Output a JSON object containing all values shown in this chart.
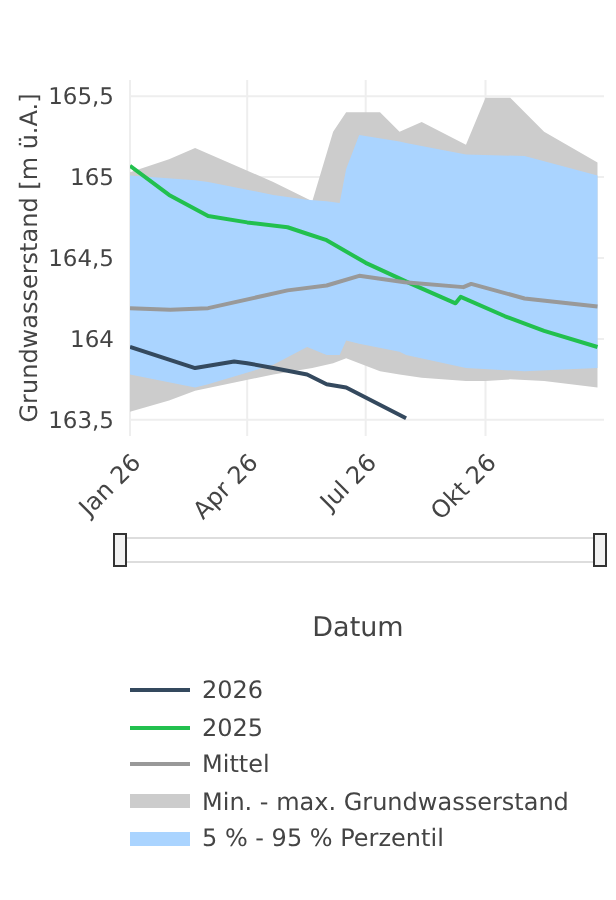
{
  "chart_data": {
    "type": "line",
    "xlabel": "Datum",
    "ylabel": "Grundwasserstand [m ü.A.]",
    "xlim": [
      "2026-01-01",
      "2026-12-31"
    ],
    "xticks": [
      {
        "value": "2026-01-01",
        "label": "Jan 26"
      },
      {
        "value": "2026-04-01",
        "label": "Apr 26"
      },
      {
        "value": "2026-07-01",
        "label": "Jul 26"
      },
      {
        "value": "2026-10-01",
        "label": "Okt 26"
      }
    ],
    "ylim": [
      163.4,
      165.6
    ],
    "yticks": [
      {
        "value": 163.5,
        "label": "163,5"
      },
      164,
      {
        "value": 164.5,
        "label": "164,5"
      },
      165,
      {
        "value": 165.5,
        "label": "165,5"
      }
    ],
    "grid": true,
    "legend": "bottom",
    "marker": "none",
    "series": [
      {
        "name": "2026",
        "color": "#34495e",
        "x": [
          "2026-01-01",
          "2026-02-20",
          "2026-03-22",
          "2026-04-01",
          "2026-04-21",
          "2026-05-17",
          "2026-06-01",
          "2026-06-16",
          "2026-08-01"
        ],
        "values": [
          163.95,
          163.82,
          163.86,
          163.85,
          163.82,
          163.78,
          163.72,
          163.7,
          163.51
        ]
      },
      {
        "name": "2025",
        "color": "#22c04e",
        "x": [
          "2026-01-01",
          "2026-01-31",
          "2026-03-02",
          "2026-04-01",
          "2026-05-02",
          "2026-05-17",
          "2026-06-01",
          "2026-07-01",
          "2026-08-05",
          "2026-09-08",
          "2026-09-12",
          "2026-10-16",
          "2026-11-15",
          "2026-12-26"
        ],
        "values": [
          165.07,
          164.89,
          164.76,
          164.72,
          164.69,
          164.65,
          164.61,
          164.47,
          164.34,
          164.22,
          164.26,
          164.14,
          164.05,
          163.95
        ]
      },
      {
        "name": "Mittel",
        "color": "#999999",
        "x": [
          "2026-01-01",
          "2026-02-01",
          "2026-03-02",
          "2026-05-02",
          "2026-06-01",
          "2026-06-26",
          "2026-07-31",
          "2026-09-14",
          "2026-09-20",
          "2026-10-31",
          "2026-12-26"
        ],
        "values": [
          164.19,
          164.18,
          164.19,
          164.3,
          164.33,
          164.39,
          164.35,
          164.32,
          164.34,
          164.25,
          164.2
        ]
      },
      {
        "name": "Min. - max. Grundwasserstand",
        "type": "area",
        "color": "#cccccc",
        "x": [
          "2026-01-01",
          "2026-01-31",
          "2026-02-20",
          "2026-04-21",
          "2026-05-21",
          "2026-06-06",
          "2026-06-16",
          "2026-07-12",
          "2026-07-27",
          "2026-08-13",
          "2026-09-16",
          "2026-10-01",
          "2026-10-20",
          "2026-11-15",
          "2026-12-26"
        ],
        "values": [
          null,
          null,
          null,
          null,
          null,
          null,
          null,
          null,
          null,
          null,
          null,
          null,
          null,
          null,
          null
        ],
        "lower": [
          163.55,
          163.62,
          163.68,
          163.78,
          163.82,
          163.85,
          163.88,
          163.8,
          163.78,
          163.76,
          163.74,
          163.74,
          163.75,
          163.74,
          163.7
        ],
        "upper": [
          165.03,
          165.11,
          165.18,
          164.97,
          164.85,
          165.28,
          165.4,
          165.4,
          165.28,
          165.34,
          165.2,
          165.49,
          165.49,
          165.28,
          165.09
        ]
      },
      {
        "name": "5 % - 95 % Perzentil",
        "type": "area",
        "color": "#aad4ff",
        "x": [
          "2026-01-01",
          "2026-02-20",
          "2026-03-02",
          "2026-04-21",
          "2026-05-17",
          "2026-06-01",
          "2026-06-11",
          "2026-06-16",
          "2026-06-26",
          "2026-07-27",
          "2026-08-01",
          "2026-09-16",
          "2026-10-31",
          "2026-12-26"
        ],
        "values": [
          null,
          null,
          null,
          null,
          null,
          null,
          null,
          null,
          null,
          null,
          null,
          null,
          null,
          null
        ],
        "lower": [
          163.78,
          163.7,
          163.72,
          163.84,
          163.95,
          163.9,
          163.9,
          163.99,
          163.97,
          163.92,
          163.9,
          163.82,
          163.8,
          163.82
        ],
        "upper": [
          165.01,
          164.98,
          164.97,
          164.89,
          164.86,
          164.85,
          164.84,
          165.05,
          165.26,
          165.22,
          165.21,
          165.14,
          165.13,
          165.01
        ]
      }
    ]
  }
}
